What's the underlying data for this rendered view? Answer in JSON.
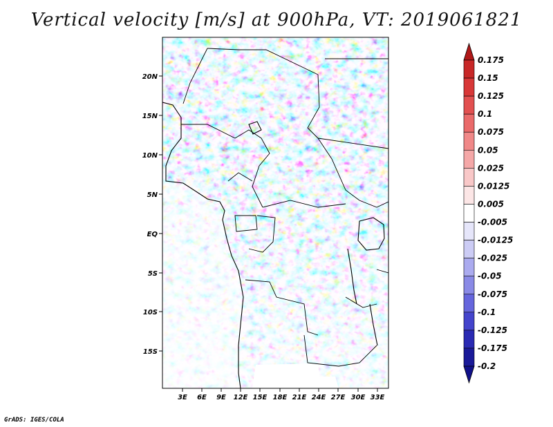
{
  "title": "Vertical velocity [m/s] at 900hPa, VT: 2019061821",
  "credit": "GrADS: IGES/COLA",
  "map": {
    "lat_labels": [
      "20N",
      "15N",
      "10N",
      "5N",
      "EQ",
      "5S",
      "10S",
      "15S"
    ],
    "lon_labels": [
      "3E",
      "6E",
      "9E",
      "12E",
      "15E",
      "18E",
      "21E",
      "24E",
      "27E",
      "30E",
      "33E"
    ]
  },
  "colorbar": {
    "labels": [
      "0.175",
      "0.15",
      "0.125",
      "0.1",
      "0.075",
      "0.05",
      "0.025",
      "0.0125",
      "0.005",
      "-0.005",
      "-0.0125",
      "-0.025",
      "-0.05",
      "-0.075",
      "-0.1",
      "-0.125",
      "-0.175",
      "-0.2"
    ],
    "colors": [
      "#b01818",
      "#c82828",
      "#d83838",
      "#e25050",
      "#ea6a6a",
      "#f08888",
      "#f5a8a8",
      "#f9c8c8",
      "#fce6e6",
      "#ffffff",
      "#e6e6fa",
      "#ccccf5",
      "#ababef",
      "#8a8ae6",
      "#6666dd",
      "#4444cc",
      "#2a2ab3",
      "#1a1a99",
      "#10108a"
    ]
  },
  "chart_data": {
    "type": "heatmap",
    "title": "Vertical velocity [m/s] at 900hPa, VT: 2019061821",
    "x_ticks": [
      "3E",
      "6E",
      "9E",
      "12E",
      "15E",
      "18E",
      "21E",
      "24E",
      "27E",
      "30E",
      "33E"
    ],
    "y_ticks": [
      "20N",
      "15N",
      "10N",
      "5N",
      "EQ",
      "5S",
      "10S",
      "15S"
    ],
    "levels": [
      -0.2,
      -0.175,
      -0.125,
      -0.1,
      -0.075,
      -0.05,
      -0.025,
      -0.0125,
      -0.005,
      0.005,
      0.0125,
      0.025,
      0.05,
      0.075,
      0.1,
      0.125,
      0.15,
      0.175
    ]
  }
}
